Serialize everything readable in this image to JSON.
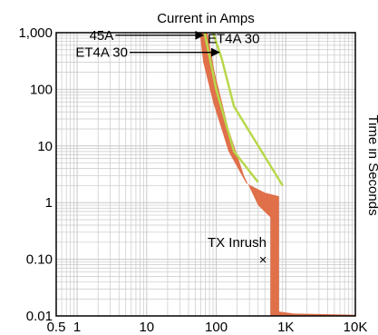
{
  "chart_data": {
    "type": "line",
    "title": "Current in Amps",
    "ylabel": "Time in Seconds",
    "xscale": "log",
    "yscale": "log",
    "xlim": [
      0.5,
      10000
    ],
    "ylim": [
      0.01,
      1000
    ],
    "grid": true,
    "x_ticks": [
      {
        "value": 0.5,
        "label": "0.5"
      },
      {
        "value": 1,
        "label": "1"
      },
      {
        "value": 10,
        "label": "10"
      },
      {
        "value": 100,
        "label": "100"
      },
      {
        "value": 1000,
        "label": "1K"
      },
      {
        "value": 10000,
        "label": "10K"
      }
    ],
    "y_ticks": [
      {
        "value": 0.01,
        "label": "0.01"
      },
      {
        "value": 0.1,
        "label": "0.10"
      },
      {
        "value": 1,
        "label": "1"
      },
      {
        "value": 10,
        "label": "10"
      },
      {
        "value": 100,
        "label": "100"
      },
      {
        "value": 1000,
        "label": "1,000"
      }
    ],
    "colors": {
      "band": "#e0704a",
      "curve": "#b8d84a",
      "grid": "#c8c8c8"
    },
    "band": {
      "name": "45A",
      "upper": [
        [
          58,
          1000
        ],
        [
          65,
          300
        ],
        [
          90,
          60
        ],
        [
          150,
          8
        ],
        [
          270,
          2.2
        ],
        [
          500,
          1.5
        ],
        [
          800,
          1.3
        ],
        [
          800,
          0.012
        ],
        [
          1300,
          0.011
        ],
        [
          3000,
          0.0108
        ],
        [
          10000,
          0.0105
        ]
      ],
      "lower": [
        [
          75,
          1000
        ],
        [
          95,
          200
        ],
        [
          150,
          20
        ],
        [
          250,
          3
        ],
        [
          400,
          0.9
        ],
        [
          600,
          0.55
        ],
        [
          600,
          0.01
        ],
        [
          10000,
          0.01
        ]
      ]
    },
    "series": [
      {
        "name": "ET4A 30",
        "values": [
          [
            68,
            1000
          ],
          [
            100,
            100
          ],
          [
            180,
            8
          ],
          [
            400,
            2.3
          ]
        ]
      },
      {
        "name": "ET4A 30",
        "values": [
          [
            90,
            1000
          ],
          [
            120,
            350
          ],
          [
            180,
            50
          ],
          [
            900,
            2
          ]
        ]
      }
    ],
    "annotations": [
      {
        "text": "45A",
        "text_x": 1.5,
        "text_y": 900,
        "arrow_to": [
          65,
          900
        ]
      },
      {
        "text": "ET4A 30",
        "text_x": 0.95,
        "text_y": 450,
        "arrow_to": [
          110,
          450
        ]
      },
      {
        "text": "ET4A 30",
        "text_x": 75,
        "text_y": 780
      },
      {
        "text": "TX Inrush",
        "text_x": 75,
        "text_y": 0.2
      }
    ],
    "markers": [
      {
        "label": "×",
        "x": 470,
        "y": 0.095
      }
    ]
  }
}
